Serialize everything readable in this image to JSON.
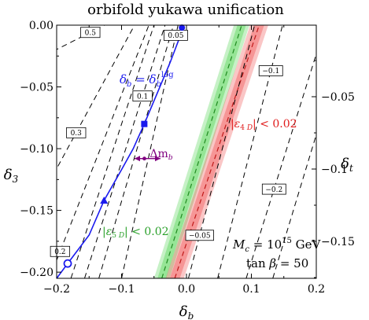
{
  "chart_data": {
    "type": "line",
    "title": "orbifold yukawa unification",
    "xlabel": "δ_b",
    "ylabel": "δ_3",
    "y2label": "δ_t",
    "xlim": [
      -0.2,
      0.2
    ],
    "ylim": [
      -0.205,
      0.0
    ],
    "xticks": [
      -0.2,
      -0.1,
      0.0,
      0.1,
      0.2
    ],
    "xtick_labels": [
      "−0.2",
      "−0.1",
      "0.0",
      "0.1",
      "0.2"
    ],
    "yticks": [
      0.0,
      -0.05,
      -0.1,
      -0.15,
      -0.2
    ],
    "ytick_labels": [
      "0.00",
      "−0.05",
      "−0.10",
      "−0.15",
      "−0.20"
    ],
    "y2ticks": [
      -0.05,
      -0.1,
      -0.15
    ],
    "y2tick_labels": [
      "−0.05",
      "−0.1",
      "−0.15"
    ],
    "contours": [
      {
        "label": "0.5",
        "points": [
          [
            -0.205,
            -0.021
          ],
          [
            -0.126,
            0.0
          ]
        ]
      },
      {
        "label": "0.3",
        "points": [
          [
            -0.205,
            -0.121
          ],
          [
            -0.08,
            0.0
          ]
        ]
      },
      {
        "label": "0.2",
        "points": [
          [
            -0.205,
            -0.197
          ],
          [
            -0.058,
            0.0
          ]
        ]
      },
      {
        "label": "0.1",
        "points": [
          [
            -0.157,
            -0.205
          ],
          [
            -0.033,
            0.0
          ]
        ]
      },
      {
        "label": "0.05",
        "points": [
          [
            -0.1,
            -0.205
          ],
          [
            -0.013,
            0.0
          ]
        ]
      },
      {
        "label": "",
        "points": [
          [
            -0.178,
            -0.205
          ],
          [
            -0.05,
            0.0
          ]
        ]
      },
      {
        "label": "",
        "points": [
          [
            -0.135,
            -0.205
          ],
          [
            -0.02,
            0.0
          ]
        ]
      },
      {
        "label": "−0.05",
        "points": [
          [
            0.003,
            -0.205
          ],
          [
            0.105,
            0.0
          ]
        ]
      },
      {
        "label": "−0.1",
        "points": [
          [
            0.048,
            -0.205
          ],
          [
            0.148,
            0.0
          ]
        ]
      },
      {
        "label": "−0.2",
        "points": [
          [
            0.092,
            -0.205
          ],
          [
            0.205,
            -0.015
          ]
        ]
      },
      {
        "label": "",
        "points": [
          [
            0.133,
            -0.205
          ],
          [
            0.205,
            -0.08
          ]
        ]
      }
    ],
    "bands": [
      {
        "name": "|ε_5D| < 0.02",
        "color": "#33cc33",
        "center": [
          [
            -0.038,
            -0.205
          ],
          [
            0.085,
            0.0
          ]
        ],
        "half_width": 0.012
      },
      {
        "name": "|ε_4D| < 0.02",
        "color": "#ee3333",
        "center": [
          [
            -0.018,
            -0.205
          ],
          [
            0.112,
            0.0
          ]
        ],
        "half_width": 0.014
      }
    ],
    "log_curve": {
      "label": "δ_b = δ_b^log",
      "color": "#1a1aee",
      "points": [
        [
          -0.2,
          -0.205
        ],
        [
          -0.183,
          -0.193
        ],
        [
          -0.15,
          -0.17
        ],
        [
          -0.127,
          -0.142
        ],
        [
          -0.1,
          -0.117
        ],
        [
          -0.082,
          -0.1
        ],
        [
          -0.065,
          -0.08
        ],
        [
          -0.045,
          -0.055
        ],
        [
          -0.025,
          -0.03
        ],
        [
          -0.012,
          -0.012
        ],
        [
          -0.007,
          -0.002
        ]
      ],
      "markers": [
        {
          "shape": "open-circle",
          "x": -0.183,
          "y": -0.193
        },
        {
          "shape": "triangle",
          "x": -0.127,
          "y": -0.142
        },
        {
          "shape": "square",
          "x": -0.065,
          "y": -0.08
        },
        {
          "shape": "filled-circle",
          "x": -0.007,
          "y": -0.002
        }
      ]
    },
    "delta_mb_arrow": {
      "label": "Δm_b",
      "color": "#800080",
      "x_from": -0.08,
      "x_to": -0.04,
      "y": -0.108
    },
    "annotations": [
      "M_c = 10^15 GeV",
      "tan β = 50"
    ]
  }
}
